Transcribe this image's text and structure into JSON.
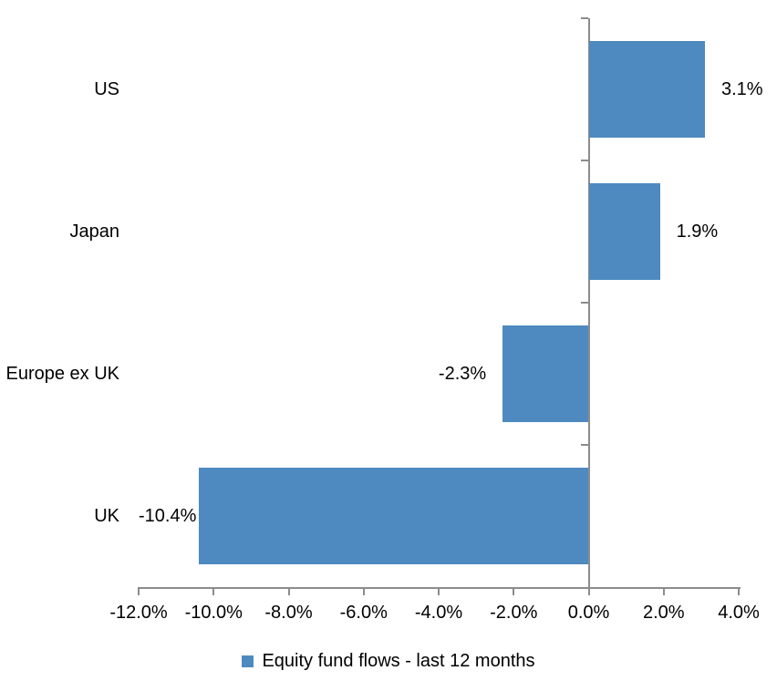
{
  "chart_data": {
    "type": "bar",
    "orientation": "horizontal",
    "title": "",
    "categories": [
      "US",
      "Japan",
      "Europe ex UK",
      "UK"
    ],
    "values": [
      3.1,
      1.9,
      -2.3,
      -10.4
    ],
    "data_labels": [
      "3.1%",
      "1.9%",
      "-2.3%",
      "-10.4%"
    ],
    "xlim": [
      -12,
      4
    ],
    "x_ticks": [
      -12,
      -10,
      -8,
      -6,
      -4,
      -2,
      0,
      2,
      4
    ],
    "x_tick_labels": [
      "-12.0%",
      "-10.0%",
      "-8.0%",
      "-6.0%",
      "-4.0%",
      "-2.0%",
      "0.0%",
      "2.0%",
      "4.0%"
    ],
    "grid": false,
    "legend_position": "bottom",
    "legend": [
      {
        "label": "Equity fund flows - last 12 months",
        "color": "#4E8AC0"
      }
    ],
    "colors": {
      "bar": "#4E8AC0",
      "axis": "#8C8C8C",
      "text": "#000000",
      "background": "#FFFFFF"
    }
  }
}
